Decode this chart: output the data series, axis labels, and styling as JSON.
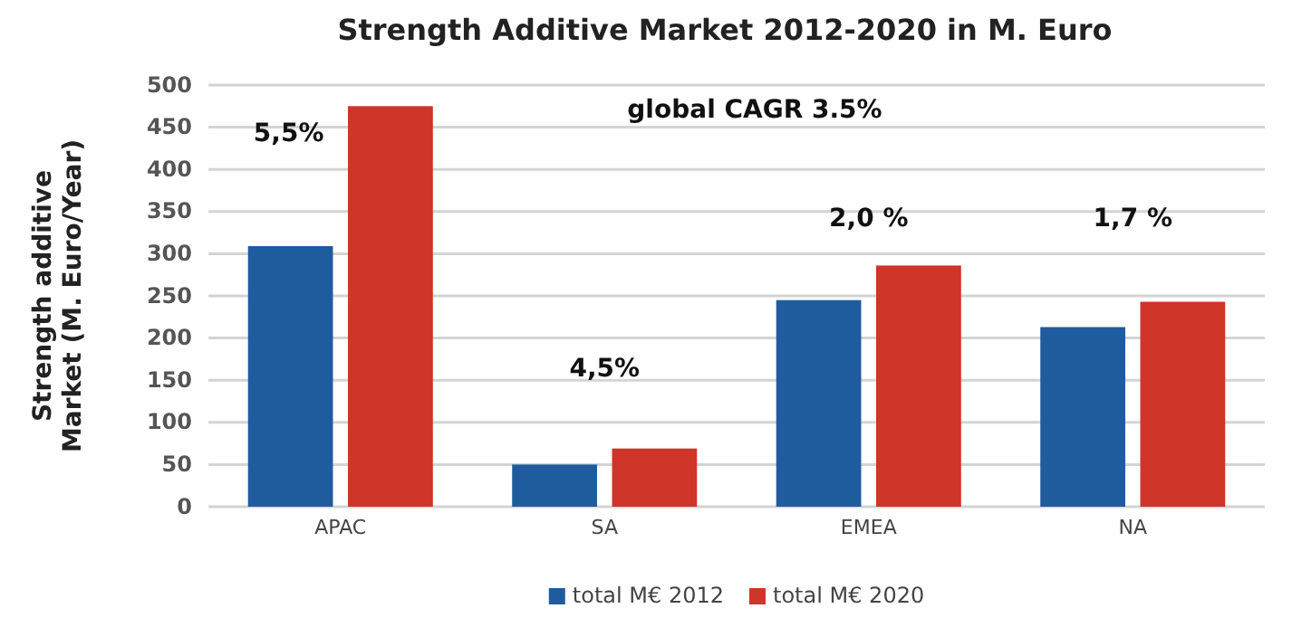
{
  "chart_data": {
    "type": "bar",
    "title": "Strength Additive Market 2012-2020 in M. Euro",
    "ylabel": "Strength additive Market (M. Euro/Year)",
    "categories": [
      "APAC",
      "SA",
      "EMEA",
      "NA"
    ],
    "series": [
      {
        "name": "total M€ 2012",
        "color": "#1f5c9e",
        "values": [
          309,
          50,
          245,
          213
        ]
      },
      {
        "name": "total M€ 2020",
        "color": "#cf3529",
        "values": [
          475,
          69,
          286,
          243
        ]
      }
    ],
    "ylim": [
      0,
      500
    ],
    "yticks": [
      0,
      50,
      100,
      150,
      200,
      250,
      300,
      350,
      400,
      450,
      500
    ],
    "grid": "y",
    "legend": "bottom",
    "annotations": [
      "5,5%",
      "4,5%",
      "2,0 %",
      "1,7 %",
      "global CAGR 3.5%"
    ]
  }
}
